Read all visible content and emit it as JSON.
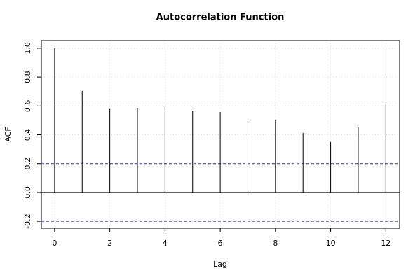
{
  "chart_data": {
    "type": "acf",
    "title": "Autocorrelation Function",
    "x_label": "Lag",
    "y_label": "ACF",
    "x": [
      0,
      1,
      2,
      3,
      4,
      5,
      6,
      7,
      8,
      9,
      10,
      11,
      12
    ],
    "values": [
      1.0,
      0.704,
      0.583,
      0.587,
      0.592,
      0.563,
      0.558,
      0.505,
      0.5,
      0.413,
      0.35,
      0.451,
      0.617
    ],
    "color": "#000000",
    "conf_bands": [
      0.2,
      -0.2
    ],
    "conf_color": "#3333cc",
    "xlim": [
      -0.48,
      12.5
    ],
    "xticks": [
      0,
      2,
      4,
      6,
      8,
      10,
      12
    ],
    "ylim": [
      -0.248,
      1.053
    ],
    "yticks": [
      {
        "value": -0.2,
        "label": "-0.2"
      },
      {
        "value": 0,
        "label": "0.0"
      },
      {
        "value": 0.2,
        "label": "0.2"
      },
      {
        "value": 0.4,
        "label": "0.4"
      },
      {
        "value": 0.6,
        "label": "0.6"
      },
      {
        "value": 0.8,
        "label": "0.8"
      },
      {
        "value": 1,
        "label": "1.0"
      }
    ],
    "grid": true
  }
}
